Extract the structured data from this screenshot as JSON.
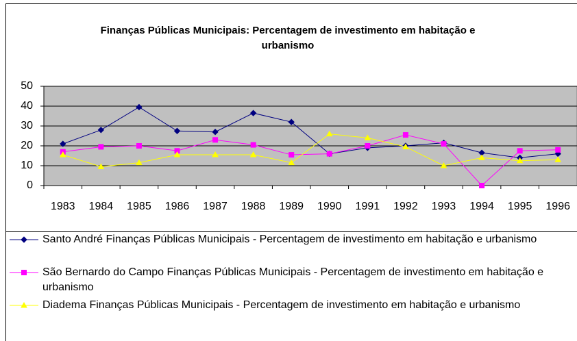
{
  "chart_data": {
    "type": "line",
    "title": "Finanças Públicas Municipais: Percentagem de investimento em habitação e urbanismo",
    "categories": [
      "1983",
      "1984",
      "1985",
      "1986",
      "1987",
      "1988",
      "1989",
      "1990",
      "1991",
      "1992",
      "1993",
      "1994",
      "1995",
      "1996"
    ],
    "series": [
      {
        "name": "Santo André Finanças Públicas Municipais - Percentagem de investimento em habitação e urbanismo",
        "color": "#000080",
        "marker": "diamond",
        "values": [
          21,
          28,
          39.5,
          27.5,
          27,
          36.5,
          32,
          16,
          19,
          20,
          21.5,
          16.5,
          14,
          16
        ]
      },
      {
        "name": "São Bernardo do Campo Finanças Públicas Municipais - Percentagem de investimento em habitação e urbanismo",
        "color": "#ff00ff",
        "marker": "square",
        "values": [
          17,
          19.5,
          20,
          17.5,
          23,
          20.5,
          15.5,
          16,
          20,
          25.5,
          21,
          0,
          17.5,
          18
        ]
      },
      {
        "name": "Diadema Finanças Públicas Municipais - Percentagem de investimento em habitação e urbanismo",
        "color": "#ffff00",
        "marker": "triangle",
        "values": [
          15.5,
          9.5,
          11.5,
          15.5,
          15.5,
          15.5,
          11.5,
          26,
          24,
          19.5,
          10,
          14,
          12.5,
          13
        ]
      }
    ],
    "ylim": [
      0,
      50
    ],
    "yticks": [
      0,
      10,
      20,
      30,
      40,
      50
    ],
    "grid": true,
    "plot_background": "#c0c0c0",
    "legend": "bottom"
  }
}
